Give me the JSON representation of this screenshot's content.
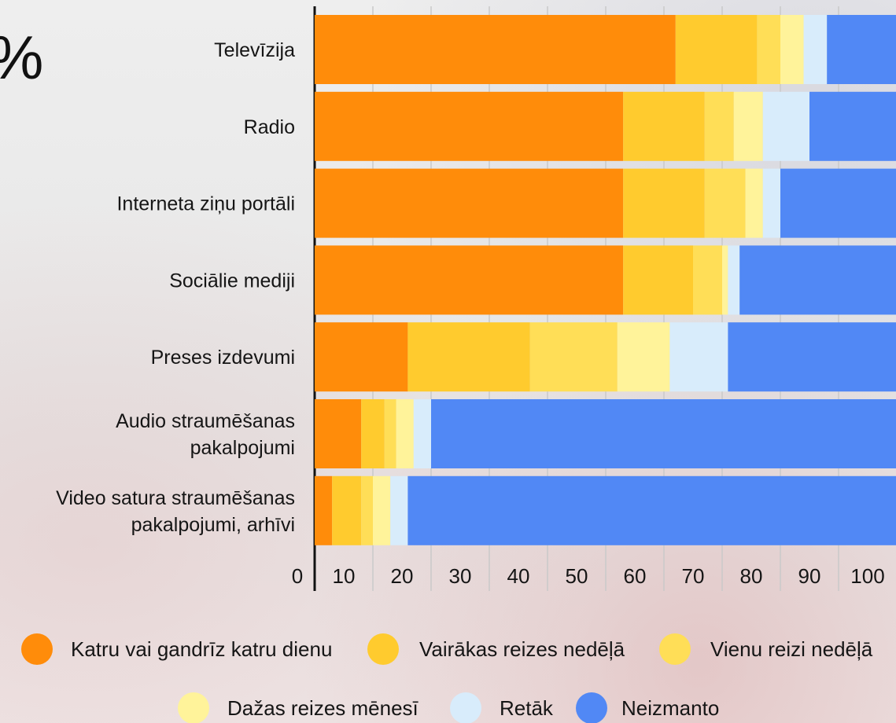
{
  "chart_data": {
    "type": "bar",
    "orientation": "horizontal",
    "stacked": true,
    "unit_mark": "%",
    "categories": [
      [
        "Televīzija"
      ],
      [
        "Radio"
      ],
      [
        "Interneta ziņu portāli"
      ],
      [
        "Sociālie mediji"
      ],
      [
        "Preses izdevumi"
      ],
      [
        "Audio straumēšanas",
        "pakalpojumi"
      ],
      [
        "Video satura straumēšanas",
        "pakalpojumi, arhīvi"
      ]
    ],
    "series": [
      {
        "name": "Katru vai gandrīz katru dienu",
        "color": "#FF8C0A",
        "values": [
          62,
          53,
          53,
          53,
          16,
          8,
          3
        ]
      },
      {
        "name": "Vairākas reizes nedēļā",
        "color": "#FFCB2E",
        "values": [
          14,
          14,
          14,
          12,
          21,
          4,
          5
        ]
      },
      {
        "name": "Vienu reizi nedēļā",
        "color": "#FFDE57",
        "values": [
          4,
          5,
          7,
          5,
          15,
          2,
          2
        ]
      },
      {
        "name": "Dažas reizes mēnesī",
        "color": "#FFF39A",
        "values": [
          4,
          5,
          3,
          1,
          9,
          3,
          3
        ]
      },
      {
        "name": "Retāk",
        "color": "#D8ECFB",
        "values": [
          4,
          8,
          3,
          2,
          10,
          3,
          3
        ]
      },
      {
        "name": "Neizmanto",
        "color": "#5188F5",
        "values": [
          12,
          15,
          20,
          27,
          29,
          80,
          84
        ]
      }
    ],
    "x_ticks": [
      0,
      10,
      20,
      30,
      40,
      50,
      60,
      70,
      80,
      90,
      100
    ],
    "xlim": [
      0,
      100
    ],
    "grid": true,
    "legend_placement": "bottom"
  }
}
